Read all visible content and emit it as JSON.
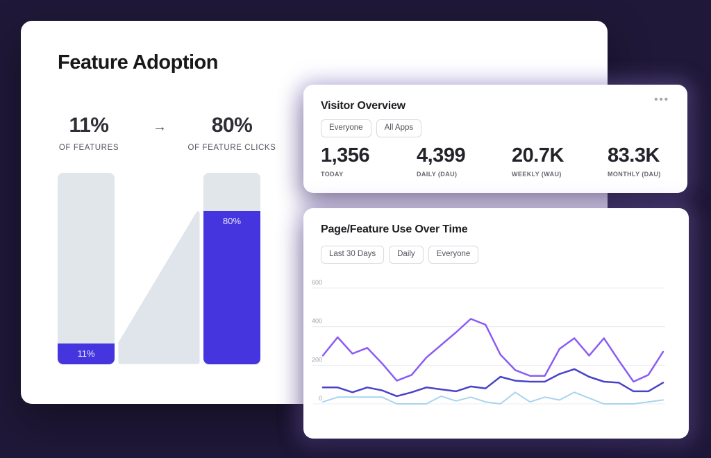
{
  "page": {
    "background_color": "#1f1838"
  },
  "feature_adoption": {
    "title": "Feature Adoption",
    "from_stat": {
      "value": "11%",
      "label": "OF FEATURES"
    },
    "arrow_glyph": "→",
    "to_stat": {
      "value": "80%",
      "label": "OF FEATURE CLICKS"
    },
    "funnel": {
      "left_bar": {
        "percent": 11,
        "label": "11%"
      },
      "right_bar": {
        "percent": 80,
        "label": "80%"
      }
    },
    "colors": {
      "bar_fill": "#4435df",
      "bar_track": "#e0e6ea",
      "connector": "#dfe5ea"
    }
  },
  "visitor_overview": {
    "title": "Visitor Overview",
    "menu_dots": "•••",
    "filters": [
      {
        "label": "Everyone"
      },
      {
        "label": "All Apps"
      }
    ],
    "stats": [
      {
        "value": "1,356",
        "label": "TODAY"
      },
      {
        "value": "4,399",
        "label": "DAILY (DAU)"
      },
      {
        "value": "20.7K",
        "label": "WEEKLY (WAU)"
      },
      {
        "value": "83.3K",
        "label": "MONTHLY (DAU)"
      }
    ]
  },
  "page_feature_use": {
    "title": "Page/Feature Use Over Time",
    "filters": [
      {
        "label": "Last 30 Days"
      },
      {
        "label": "Daily"
      },
      {
        "label": "Everyone"
      }
    ]
  },
  "chart_data": {
    "type": "line",
    "title": "Page/Feature Use Over Time",
    "xlabel": "",
    "ylabel": "",
    "ylim": [
      0,
      600
    ],
    "yticks": [
      0,
      200,
      400,
      600
    ],
    "grid": true,
    "legend": "none",
    "x": [
      1,
      2,
      3,
      4,
      5,
      6,
      7,
      8,
      9,
      10,
      11,
      12,
      13,
      14,
      15,
      16,
      17,
      18,
      19,
      20,
      21,
      22,
      23,
      24
    ],
    "series": [
      {
        "name": "sky",
        "color": "#a7d4ee",
        "width": 2,
        "values": [
          10,
          35,
          35,
          35,
          35,
          0,
          0,
          0,
          40,
          15,
          35,
          10,
          0,
          60,
          10,
          35,
          20,
          60,
          30,
          0,
          0,
          0,
          10,
          20
        ]
      },
      {
        "name": "indigo",
        "color": "#4843c7",
        "width": 2.5,
        "values": [
          85,
          85,
          60,
          85,
          70,
          40,
          60,
          85,
          75,
          65,
          90,
          80,
          140,
          120,
          115,
          115,
          155,
          180,
          140,
          115,
          110,
          65,
          65,
          110
        ]
      },
      {
        "name": "purple",
        "color": "#8a5cf5",
        "width": 2.5,
        "values": [
          250,
          345,
          260,
          290,
          210,
          120,
          150,
          240,
          305,
          370,
          440,
          410,
          255,
          175,
          145,
          145,
          285,
          340,
          250,
          340,
          225,
          115,
          150,
          270
        ]
      }
    ]
  }
}
